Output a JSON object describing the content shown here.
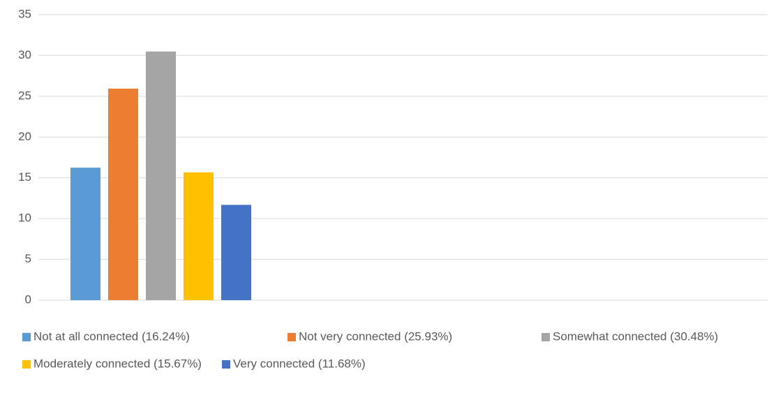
{
  "chart_data": {
    "type": "bar",
    "categories": [
      null,
      null,
      null,
      null
    ],
    "series": [
      {
        "name": "Not at all connected (16.24%)",
        "color": "#5b9bd5",
        "values": [
          16.24,
          null,
          null,
          null
        ]
      },
      {
        "name": "Not very connected (25.93%)",
        "color": "#ed7d31",
        "values": [
          25.93,
          null,
          null,
          null
        ]
      },
      {
        "name": "Somewhat connected (30.48%)",
        "color": "#a5a5a5",
        "values": [
          30.48,
          null,
          null,
          null
        ]
      },
      {
        "name": "Moderately connected (15.67%)",
        "color": "#ffc000",
        "values": [
          15.67,
          null,
          null,
          null
        ]
      },
      {
        "name": "Very connected (11.68%)",
        "color": "#4472c4",
        "values": [
          11.68,
          null,
          null,
          null
        ]
      }
    ],
    "ylim": [
      0,
      35
    ],
    "yticks": [
      0,
      5,
      10,
      15,
      20,
      25,
      30,
      35
    ],
    "grid": true,
    "legend": "bottom"
  }
}
